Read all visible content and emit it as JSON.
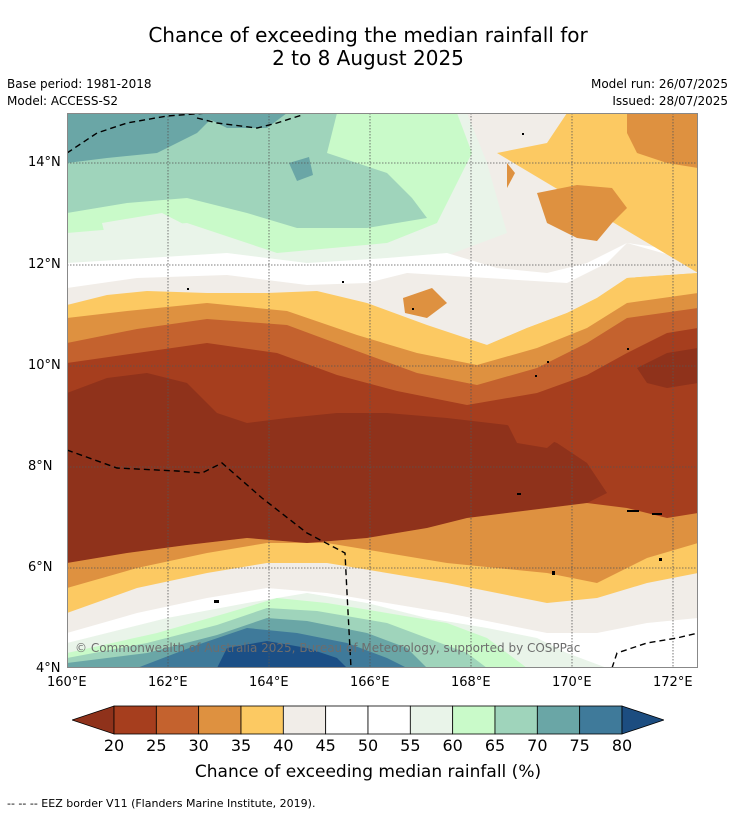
{
  "title": {
    "line1": "Chance of exceeding the median rainfall for",
    "line2": "2 to 8 August 2025"
  },
  "meta": {
    "base_period": "Base period: 1981-2018",
    "model": "Model: ACCESS-S2",
    "model_run": "Model run: 26/07/2025",
    "issued": "Issued: 28/07/2025"
  },
  "map": {
    "lat_labels": [
      "14°N",
      "12°N",
      "10°N",
      "8°N",
      "6°N",
      "4°N"
    ],
    "lon_labels": [
      "160°E",
      "162°E",
      "164°E",
      "166°E",
      "168°E",
      "170°E",
      "172°E"
    ],
    "copyright": "© Commonwealth of Australia 2025, Bureau of Meteorology, supported by COSPPac"
  },
  "colorbar": {
    "ticks": [
      "20",
      "25",
      "30",
      "35",
      "40",
      "45",
      "50",
      "55",
      "60",
      "65",
      "70",
      "75",
      "80"
    ],
    "colors": [
      "#a63e1e",
      "#c4622e",
      "#de9140",
      "#fcc962",
      "#f1ede8",
      "#ffffff",
      "#ffffff",
      "#e9f4e9",
      "#c9fac9",
      "#9fd4bb",
      "#6aa6a6",
      "#3f7a9a",
      "#1b4f86"
    ],
    "under_color": "#8f321b",
    "over_color": "#1c4d80",
    "title": "Chance of exceeding median rainfall (%)"
  },
  "footer": {
    "eez_note": "--  --  -- EEZ border V11 (Flanders Marine Institute, 2019)."
  }
}
